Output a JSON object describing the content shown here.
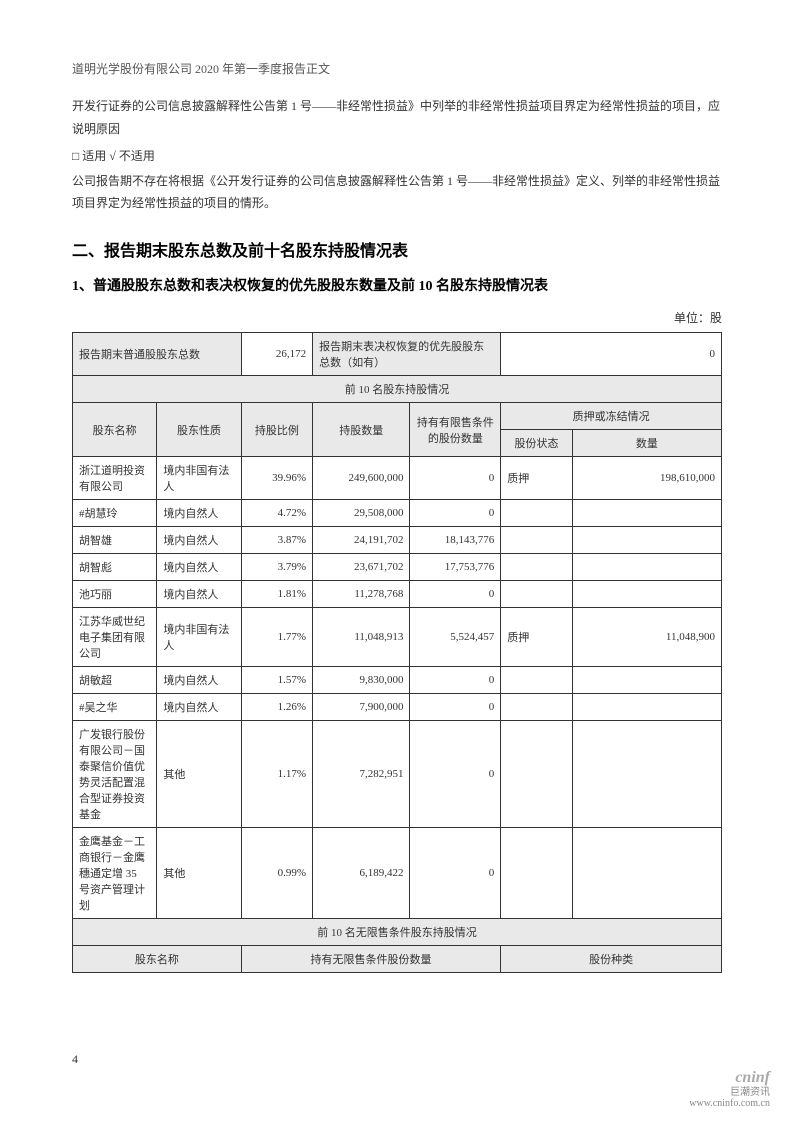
{
  "header": "道明光学股份有限公司 2020 年第一季度报告正文",
  "para1": "开发行证券的公司信息披露解释性公告第 1 号——非经常性损益》中列举的非经常性损益项目界定为经常性损益的项目，应说明原因",
  "checkbox_line": "□ 适用  √ 不适用",
  "para2": "公司报告期不存在将根据《公开发行证券的公司信息披露解释性公告第 1 号——非经常性损益》定义、列举的非经常性损益项目界定为经常性损益的项目的情形。",
  "section_title": "二、报告期末股东总数及前十名股东持股情况表",
  "sub_title": "1、普通股股东总数和表决权恢复的优先股股东数量及前 10 名股东持股情况表",
  "unit_label": "单位：股",
  "summary": {
    "label1": "报告期末普通股股东总数",
    "val1": "26,172",
    "label2": "报告期末表决权恢复的优先股股东总数（如有）",
    "val2": "0"
  },
  "table_section_header": "前 10 名股东持股情况",
  "cols": {
    "c1": "股东名称",
    "c2": "股东性质",
    "c3": "持股比例",
    "c4": "持股数量",
    "c5": "持有有限售条件的股份数量",
    "c6": "质押或冻结情况",
    "c6a": "股份状态",
    "c6b": "数量"
  },
  "rows": [
    {
      "name": "浙江道明投资有限公司",
      "nature": "境内非国有法人",
      "ratio": "39.96%",
      "qty": "249,600,000",
      "restricted": "0",
      "status": "质押",
      "pledge": "198,610,000"
    },
    {
      "name": "#胡慧玲",
      "nature": "境内自然人",
      "ratio": "4.72%",
      "qty": "29,508,000",
      "restricted": "0",
      "status": "",
      "pledge": ""
    },
    {
      "name": "胡智雄",
      "nature": "境内自然人",
      "ratio": "3.87%",
      "qty": "24,191,702",
      "restricted": "18,143,776",
      "status": "",
      "pledge": ""
    },
    {
      "name": "胡智彪",
      "nature": "境内自然人",
      "ratio": "3.79%",
      "qty": "23,671,702",
      "restricted": "17,753,776",
      "status": "",
      "pledge": ""
    },
    {
      "name": "池巧丽",
      "nature": "境内自然人",
      "ratio": "1.81%",
      "qty": "11,278,768",
      "restricted": "0",
      "status": "",
      "pledge": ""
    },
    {
      "name": "江苏华威世纪电子集团有限公司",
      "nature": "境内非国有法人",
      "ratio": "1.77%",
      "qty": "11,048,913",
      "restricted": "5,524,457",
      "status": "质押",
      "pledge": "11,048,900"
    },
    {
      "name": "胡敏超",
      "nature": "境内自然人",
      "ratio": "1.57%",
      "qty": "9,830,000",
      "restricted": "0",
      "status": "",
      "pledge": ""
    },
    {
      "name": "#吴之华",
      "nature": "境内自然人",
      "ratio": "1.26%",
      "qty": "7,900,000",
      "restricted": "0",
      "status": "",
      "pledge": ""
    },
    {
      "name": "广发银行股份有限公司－国泰聚信价值优势灵活配置混合型证券投资基金",
      "nature": "其他",
      "ratio": "1.17%",
      "qty": "7,282,951",
      "restricted": "0",
      "status": "",
      "pledge": ""
    },
    {
      "name": "金鹰基金－工商银行－金鹰穗通定增 35 号资产管理计划",
      "nature": "其他",
      "ratio": "0.99%",
      "qty": "6,189,422",
      "restricted": "0",
      "status": "",
      "pledge": ""
    }
  ],
  "lower_section_header": "前 10 名无限售条件股东持股情况",
  "lower_cols": {
    "c1": "股东名称",
    "c2": "持有无限售条件股份数量",
    "c3": "股份种类"
  },
  "page_number": "4",
  "footer": {
    "brand": "cninf",
    "sub": "巨潮资讯",
    "url": "www.cninfo.com.cn"
  }
}
